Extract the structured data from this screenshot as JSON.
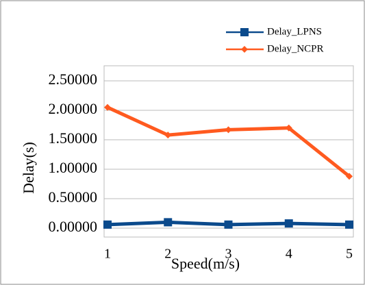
{
  "chart_data": {
    "type": "line",
    "x_label": "Speed(m/s)",
    "y_label": "Delay(s)",
    "categories": [
      "1",
      "2",
      "3",
      "4",
      "5"
    ],
    "series": [
      {
        "name": "Delay_LPNS",
        "color": "#0b4a8c",
        "marker": "square",
        "values": [
          0.06,
          0.1,
          0.06,
          0.08,
          0.06
        ]
      },
      {
        "name": "Delay_NCPR",
        "color": "#ff5a1f",
        "marker": "diamond",
        "values": [
          2.05,
          1.58,
          1.67,
          1.7,
          0.88
        ]
      }
    ],
    "ylim": [
      0,
      2.5
    ],
    "yticks": [
      {
        "value": 0,
        "label": "0.00000"
      },
      {
        "value": 0.5,
        "label": "0.50000"
      },
      {
        "value": 1,
        "label": "1.00000"
      },
      {
        "value": 1.5,
        "label": "1.50000"
      },
      {
        "value": 2,
        "label": "2.00000"
      },
      {
        "value": 2.5,
        "label": "2.50000"
      }
    ],
    "grid": true,
    "legend": "top-right"
  }
}
